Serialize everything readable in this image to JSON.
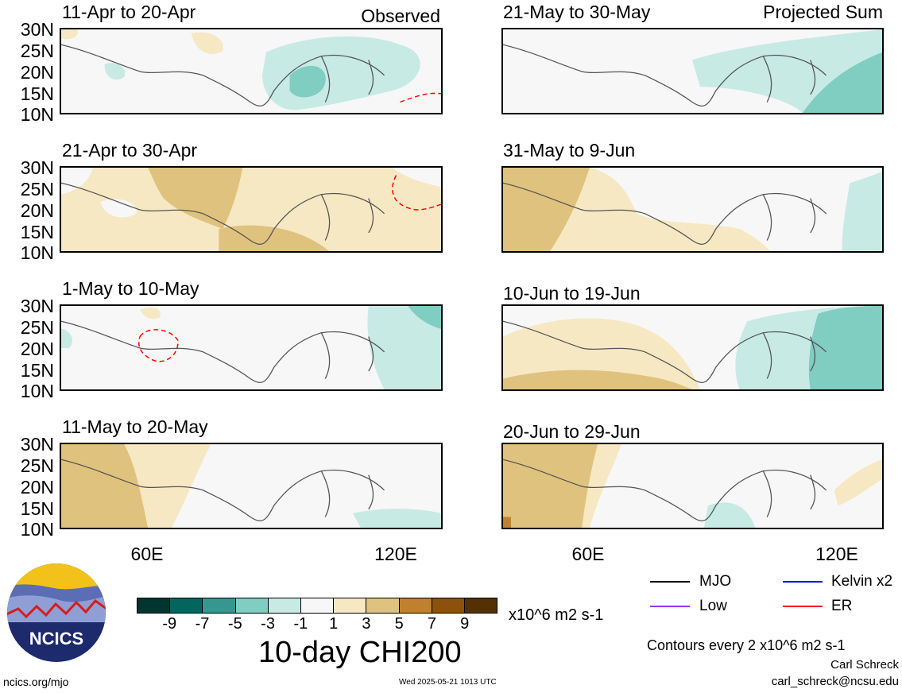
{
  "product_title": "10-day CHI200",
  "panels": [
    {
      "title": "11-Apr to 20-Apr",
      "tag": "Observed"
    },
    {
      "title": "21-May to 30-May",
      "tag": "Projected Sum"
    },
    {
      "title": "21-Apr to 30-Apr",
      "tag": ""
    },
    {
      "title": "31-May to 9-Jun",
      "tag": ""
    },
    {
      "title": "1-May to 10-May",
      "tag": ""
    },
    {
      "title": "10-Jun to 19-Jun",
      "tag": ""
    },
    {
      "title": "11-May to 20-May",
      "tag": ""
    },
    {
      "title": "20-Jun to 29-Jun",
      "tag": ""
    }
  ],
  "y_axis_labels": [
    "30N",
    "25N",
    "20N",
    "15N",
    "10N"
  ],
  "x_axis_labels": [
    "60E",
    "120E"
  ],
  "colorbar": {
    "colors": [
      "#01352f",
      "#02665e",
      "#35978f",
      "#80cdc1",
      "#c7eae5",
      "#f7f7f7",
      "#f6e8c3",
      "#dfc27d",
      "#bf812d",
      "#8c510a",
      "#543005"
    ],
    "ticks": [
      "-9",
      "-7",
      "-5",
      "-3",
      "-1",
      "1",
      "3",
      "5",
      "7",
      "9"
    ],
    "units": "x10^6 m2 s-1"
  },
  "legend": [
    {
      "label": "MJO",
      "color": "#000000"
    },
    {
      "label": "Kelvin x2",
      "color": "#0000ff"
    },
    {
      "label": "Low",
      "color": "#9933ff"
    },
    {
      "label": "ER",
      "color": "#ff0000"
    }
  ],
  "contour_note": "Contours every 2 x10^6 m2 s-1",
  "author": "Carl Schreck",
  "email": "carl_schreck@ncsu.edu",
  "website": "ncics.org/mjo",
  "timestamp": "Wed 2025-05-21 1013 UTC",
  "logo_text": "NCICS"
}
